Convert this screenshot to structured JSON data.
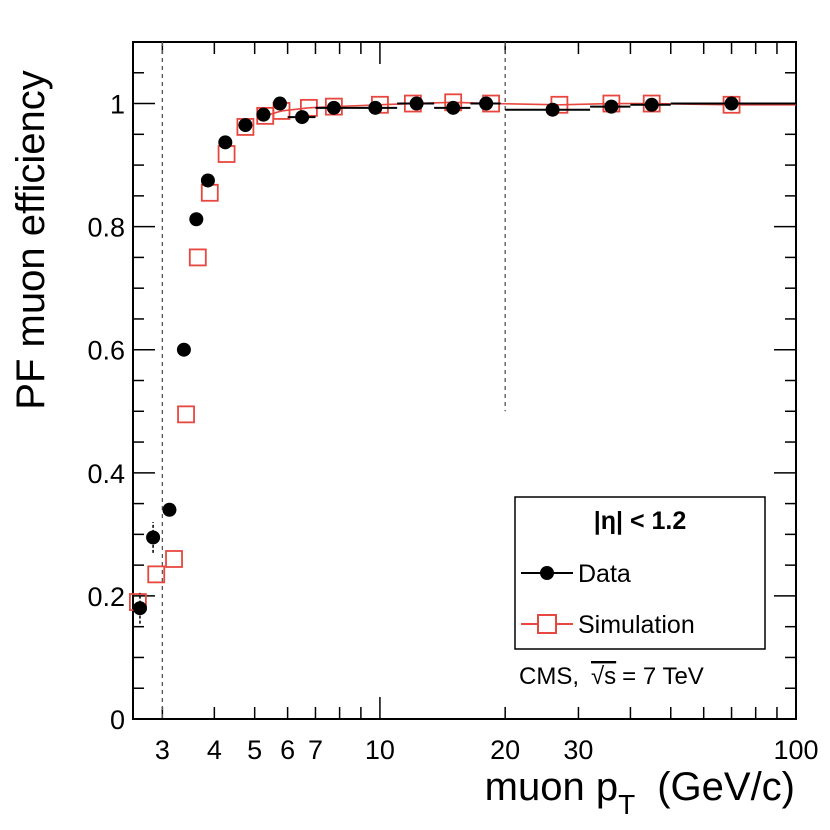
{
  "chart_data": {
    "type": "scatter",
    "title": "",
    "xlabel": "muon p",
    "xlabel_sub": "T",
    "xlabel_unit": "(GeV/c)",
    "ylabel": "PF muon efficiency",
    "x_scale": "log",
    "xlim": [
      2.55,
      100
    ],
    "ylim": [
      0,
      1.1
    ],
    "x_tick_labels": [
      "3",
      "4",
      "5",
      "6",
      "7",
      "10",
      "20",
      "30",
      "100"
    ],
    "x_tick_values": [
      3,
      4,
      5,
      6,
      7,
      10,
      20,
      30,
      100
    ],
    "y_tick_labels": [
      "0",
      "0.2",
      "0.4",
      "0.6",
      "0.8",
      "1"
    ],
    "y_tick_values": [
      0,
      0.2,
      0.4,
      0.6,
      0.8,
      1.0
    ],
    "reference_lines_x": [
      3,
      20
    ],
    "series": [
      {
        "name": "Data",
        "color": "#000000",
        "marker": "filled-circle",
        "points": [
          {
            "x": 2.65,
            "y": 0.18,
            "xerr": [
              2.62,
              2.68
            ],
            "yerr": [
              0.155,
              0.205
            ]
          },
          {
            "x": 2.85,
            "y": 0.295,
            "xerr": [
              2.82,
              2.88
            ],
            "yerr": [
              0.27,
              0.32
            ]
          },
          {
            "x": 3.12,
            "y": 0.34,
            "xerr": [
              3.09,
              3.15
            ],
            "yerr": [
              0.33,
              0.35
            ]
          },
          {
            "x": 3.38,
            "y": 0.6,
            "xerr": [
              3.35,
              3.41
            ],
            "yerr": [
              0.595,
              0.605
            ]
          },
          {
            "x": 3.62,
            "y": 0.812,
            "xerr": [
              3.58,
              3.66
            ],
            "yerr": [
              0.807,
              0.817
            ]
          },
          {
            "x": 3.86,
            "y": 0.875,
            "xerr": [
              3.82,
              3.9
            ],
            "yerr": [
              0.871,
              0.879
            ]
          },
          {
            "x": 4.25,
            "y": 0.937,
            "xerr": [
              4.1,
              4.4
            ],
            "yerr": [
              0.933,
              0.941
            ]
          },
          {
            "x": 4.75,
            "y": 0.965,
            "xerr": [
              4.6,
              4.9
            ],
            "yerr": [
              0.962,
              0.968
            ]
          },
          {
            "x": 5.25,
            "y": 0.982,
            "xerr": [
              5.1,
              5.4
            ],
            "yerr": [
              0.979,
              0.985
            ]
          },
          {
            "x": 5.75,
            "y": 1.0,
            "xerr": [
              5.6,
              5.9
            ],
            "yerr": [
              0.997,
              1.003
            ]
          },
          {
            "x": 6.5,
            "y": 0.978,
            "xerr": [
              6.0,
              7.0
            ],
            "yerr": [
              0.975,
              0.981
            ]
          },
          {
            "x": 7.75,
            "y": 0.993,
            "xerr": [
              7.0,
              8.5
            ],
            "yerr": [
              0.99,
              0.996
            ]
          },
          {
            "x": 9.75,
            "y": 0.993,
            "xerr": [
              8.5,
              11.0
            ],
            "yerr": [
              0.99,
              0.996
            ]
          },
          {
            "x": 12.25,
            "y": 1.0,
            "xerr": [
              11.0,
              13.5
            ],
            "yerr": [
              0.997,
              1.003
            ]
          },
          {
            "x": 15.0,
            "y": 0.993,
            "xerr": [
              13.5,
              16.5
            ],
            "yerr": [
              0.99,
              0.996
            ]
          },
          {
            "x": 18.0,
            "y": 1.0,
            "xerr": [
              16.5,
              19.5
            ],
            "yerr": [
              0.997,
              1.003
            ]
          },
          {
            "x": 26.0,
            "y": 0.99,
            "xerr": [
              20.0,
              32.0
            ],
            "yerr": [
              0.987,
              0.993
            ]
          },
          {
            "x": 36.0,
            "y": 0.995,
            "xerr": [
              32.0,
              40.0
            ],
            "yerr": [
              0.992,
              0.998
            ]
          },
          {
            "x": 45.0,
            "y": 0.998,
            "xerr": [
              40.0,
              50.0
            ],
            "yerr": [
              0.995,
              1.001
            ]
          },
          {
            "x": 70.0,
            "y": 1.0,
            "xerr": [
              50.0,
              100.0
            ],
            "yerr": [
              0.997,
              1.003
            ]
          }
        ]
      },
      {
        "name": "Simulation",
        "color": "#e8473f",
        "marker": "open-square",
        "points": [
          {
            "x": 2.62,
            "y": 0.19
          },
          {
            "x": 2.9,
            "y": 0.235
          },
          {
            "x": 3.2,
            "y": 0.26
          },
          {
            "x": 3.42,
            "y": 0.495
          },
          {
            "x": 3.65,
            "y": 0.75
          },
          {
            "x": 3.9,
            "y": 0.855
          },
          {
            "x": 4.28,
            "y": 0.918
          },
          {
            "x": 4.75,
            "y": 0.962
          },
          {
            "x": 5.3,
            "y": 0.98
          },
          {
            "x": 5.8,
            "y": 0.988
          },
          {
            "x": 6.75,
            "y": 0.993
          },
          {
            "x": 7.75,
            "y": 0.995
          },
          {
            "x": 10.0,
            "y": 0.998
          },
          {
            "x": 12.0,
            "y": 1.0
          },
          {
            "x": 15.0,
            "y": 1.002
          },
          {
            "x": 18.5,
            "y": 1.0
          },
          {
            "x": 27.0,
            "y": 0.998
          },
          {
            "x": 36.0,
            "y": 1.0
          },
          {
            "x": 45.0,
            "y": 1.0
          },
          {
            "x": 70.0,
            "y": 0.998
          }
        ]
      }
    ],
    "legend": {
      "position": "bottom-right",
      "header": "|η| < 1.2",
      "entries": [
        "Data",
        "Simulation"
      ],
      "note_prefix": "CMS,",
      "note_sqrt": "√s",
      "note_suffix": "= 7 TeV"
    }
  }
}
